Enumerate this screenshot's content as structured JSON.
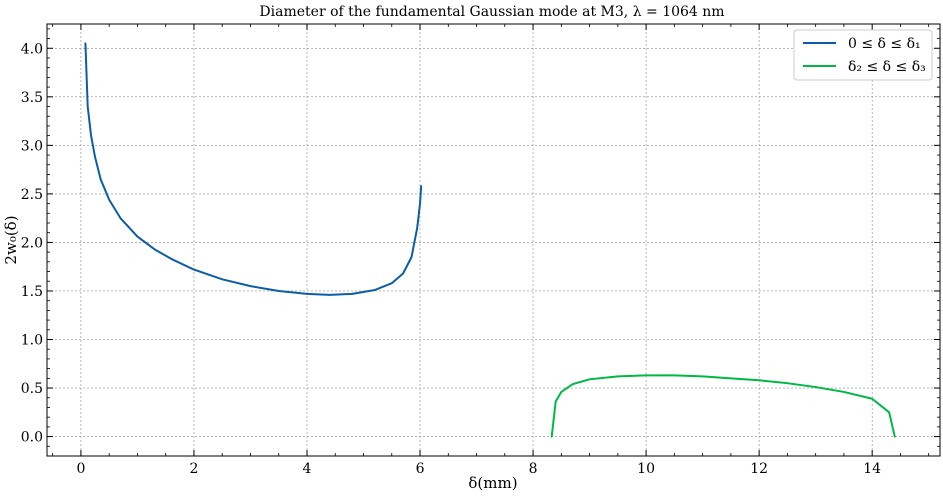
{
  "chart_data": {
    "type": "line",
    "title": "Diameter of the fundamental Gaussian mode at M3, λ = 1064 nm",
    "xlabel": "δ(mm)",
    "ylabel": "2w₀(δ)",
    "xlim": [
      -0.6,
      15.2
    ],
    "ylim": [
      -0.2,
      4.25
    ],
    "xticks": [
      0,
      2,
      4,
      6,
      8,
      10,
      12,
      14
    ],
    "xtick_labels": [
      "0",
      "2",
      "4",
      "6",
      "8",
      "10",
      "12",
      "14"
    ],
    "yticks": [
      0.0,
      0.5,
      1.0,
      1.5,
      2.0,
      2.5,
      3.0,
      3.5,
      4.0
    ],
    "ytick_labels": [
      "0.0",
      "0.5",
      "1.0",
      "1.5",
      "2.0",
      "2.5",
      "3.0",
      "3.5",
      "4.0"
    ],
    "grid": true,
    "legend_position": "top-right",
    "series": [
      {
        "name": "0 ≤ δ ≤ δ₁",
        "color": "#0c5da5",
        "x": [
          0.08,
          0.12,
          0.18,
          0.25,
          0.35,
          0.5,
          0.7,
          1.0,
          1.3,
          1.6,
          2.0,
          2.5,
          3.0,
          3.5,
          4.0,
          4.4,
          4.8,
          5.2,
          5.5,
          5.7,
          5.85,
          5.95,
          6.0,
          6.02
        ],
        "values": [
          4.05,
          3.4,
          3.1,
          2.88,
          2.65,
          2.44,
          2.25,
          2.06,
          1.93,
          1.83,
          1.72,
          1.62,
          1.55,
          1.5,
          1.47,
          1.46,
          1.47,
          1.51,
          1.58,
          1.68,
          1.85,
          2.15,
          2.4,
          2.58
        ]
      },
      {
        "name": "δ₂ ≤ δ ≤ δ₃",
        "color": "#00b945",
        "x": [
          8.33,
          8.4,
          8.5,
          8.7,
          9.0,
          9.5,
          10.0,
          10.5,
          11.0,
          11.5,
          12.0,
          12.5,
          13.0,
          13.5,
          14.0,
          14.3,
          14.4
        ],
        "values": [
          0.0,
          0.36,
          0.46,
          0.54,
          0.59,
          0.62,
          0.63,
          0.63,
          0.62,
          0.6,
          0.58,
          0.55,
          0.51,
          0.46,
          0.39,
          0.25,
          0.0
        ]
      }
    ]
  }
}
